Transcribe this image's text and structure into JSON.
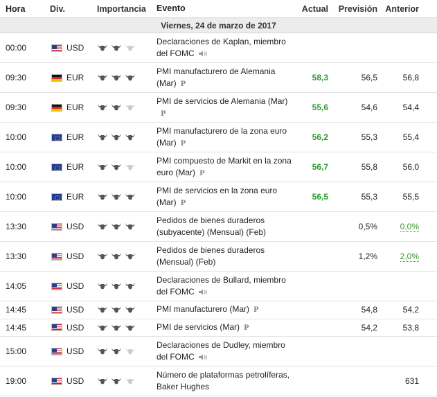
{
  "headers": {
    "time": "Hora",
    "currency": "Div.",
    "importance": "Importancia",
    "event": "Evento",
    "actual": "Actual",
    "forecast": "Previsión",
    "previous": "Anterior"
  },
  "day": "Viernes, 24 de marzo de 2017",
  "colors": {
    "positive": "#2e9b2e",
    "bull_on": "#555555",
    "bull_off": "#cccccc"
  },
  "rows": [
    {
      "time": "00:00",
      "flag": "us",
      "currency": "USD",
      "importance": 2,
      "event": "Declaraciones de Kaplan, miembro del FOMC",
      "icon": "speaker-icon",
      "actual": "",
      "forecast": "",
      "previous": ""
    },
    {
      "time": "09:30",
      "flag": "de",
      "currency": "EUR",
      "importance": 3,
      "event": "PMI manufacturero de Alemania (Mar)",
      "icon": "preliminary-icon",
      "actual": "58,3",
      "forecast": "56,5",
      "previous": "56,8"
    },
    {
      "time": "09:30",
      "flag": "de",
      "currency": "EUR",
      "importance": 2,
      "event": "PMI de servicios de Alemania (Mar)",
      "icon": "preliminary-icon",
      "actual": "55,6",
      "forecast": "54,6",
      "previous": "54,4"
    },
    {
      "time": "10:00",
      "flag": "eu",
      "currency": "EUR",
      "importance": 3,
      "event": "PMI manufacturero de la zona euro (Mar)",
      "icon": "preliminary-icon",
      "actual": "56,2",
      "forecast": "55,3",
      "previous": "55,4"
    },
    {
      "time": "10:00",
      "flag": "eu",
      "currency": "EUR",
      "importance": 2,
      "event": "PMI compuesto de Markit en la zona euro (Mar)",
      "icon": "preliminary-icon",
      "actual": "56,7",
      "forecast": "55,8",
      "previous": "56,0"
    },
    {
      "time": "10:00",
      "flag": "eu",
      "currency": "EUR",
      "importance": 3,
      "event": "PMI de servicios en la zona euro (Mar)",
      "icon": "preliminary-icon",
      "actual": "56,5",
      "forecast": "55,3",
      "previous": "55,5"
    },
    {
      "time": "13:30",
      "flag": "us",
      "currency": "USD",
      "importance": 3,
      "event": "Pedidos de bienes duraderos (subyacente) (Mensual) (Feb)",
      "icon": "",
      "actual": "",
      "forecast": "0,5%",
      "previous": "0,0%",
      "previous_revised": true
    },
    {
      "time": "13:30",
      "flag": "us",
      "currency": "USD",
      "importance": 3,
      "event": "Pedidos de bienes duraderos (Mensual) (Feb)",
      "icon": "",
      "actual": "",
      "forecast": "1,2%",
      "previous": "2,0%",
      "previous_revised": true
    },
    {
      "time": "14:05",
      "flag": "us",
      "currency": "USD",
      "importance": 3,
      "event": "Declaraciones de Bullard, miembro del FOMC",
      "icon": "speaker-icon",
      "actual": "",
      "forecast": "",
      "previous": ""
    },
    {
      "time": "14:45",
      "flag": "us",
      "currency": "USD",
      "importance": 3,
      "event": "PMI manufacturero (Mar)",
      "icon": "preliminary-icon",
      "actual": "",
      "forecast": "54,8",
      "previous": "54,2",
      "short": true
    },
    {
      "time": "14:45",
      "flag": "us",
      "currency": "USD",
      "importance": 3,
      "event": "PMI de servicios (Mar)",
      "icon": "preliminary-icon",
      "actual": "",
      "forecast": "54,2",
      "previous": "53,8",
      "short": true
    },
    {
      "time": "15:00",
      "flag": "us",
      "currency": "USD",
      "importance": 2,
      "event": "Declaraciones de Dudley, miembro del FOMC",
      "icon": "speaker-icon",
      "actual": "",
      "forecast": "",
      "previous": ""
    },
    {
      "time": "19:00",
      "flag": "us",
      "currency": "USD",
      "importance": 2,
      "event": "Número de plataformas petrolíferas, Baker Hughes",
      "icon": "",
      "actual": "",
      "forecast": "",
      "previous": "631"
    }
  ]
}
